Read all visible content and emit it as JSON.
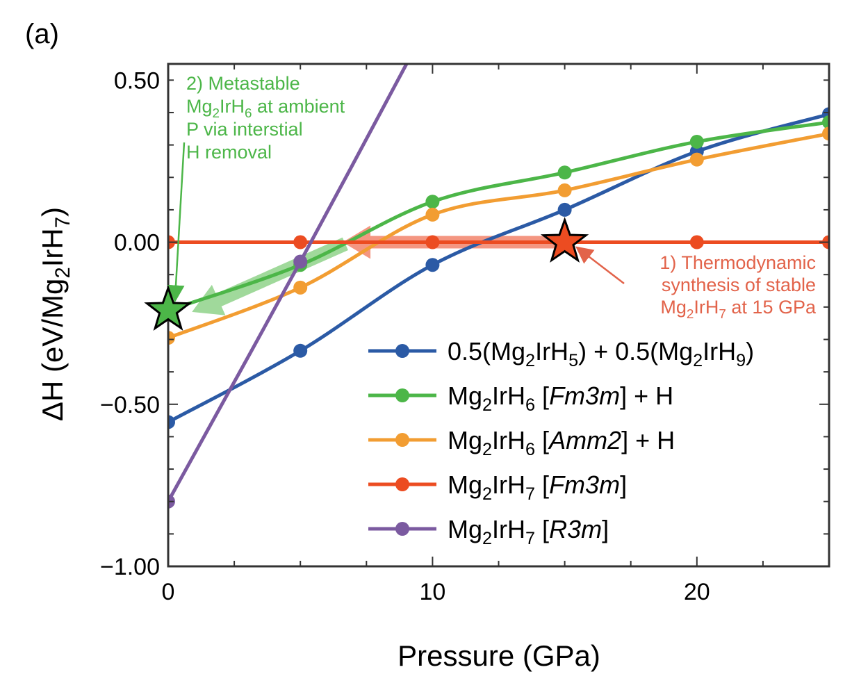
{
  "panel_label": "(a)",
  "colors": {
    "blue": "#2b5aa5",
    "green": "#4cb648",
    "orange": "#f29d32",
    "red": "#ec4c21",
    "purple": "#7b5aa0",
    "note_green": "#4cb648",
    "note_red": "#e2634a",
    "arrow_red": "#f2846b",
    "arrow_green": "#8fd28a"
  },
  "chart_data": {
    "type": "line",
    "xlabel": "Pressure (GPa)",
    "ylabel": "ΔH (eV/Mg2IrH7)",
    "xlim": [
      0,
      25
    ],
    "ylim": [
      -1.0,
      0.55
    ],
    "xticks": [
      0,
      10,
      20
    ],
    "xtick_labels": [
      "0",
      "10",
      "20"
    ],
    "yticks": [
      -1.0,
      -0.5,
      0.0,
      0.5
    ],
    "ytick_labels": [
      "−1.00",
      "−0.50",
      "0.00",
      "0.50"
    ],
    "grid": false,
    "legend_position": "bottom-right",
    "series": [
      {
        "name": "0.5(Mg2IrH5) + 0.5(Mg2IrH9)",
        "legend": {
          "parts": [
            [
              "0.5(Mg",
              ""
            ],
            [
              "2",
              "sub"
            ],
            [
              "IrH",
              ""
            ],
            [
              "5",
              "sub"
            ],
            [
              ") + 0.5(Mg",
              ""
            ],
            [
              "2",
              "sub"
            ],
            [
              "IrH",
              ""
            ],
            [
              "9",
              "sub"
            ],
            [
              ")",
              ""
            ]
          ]
        },
        "color_key": "blue",
        "x": [
          0,
          5,
          10,
          15,
          20,
          25
        ],
        "y": [
          -0.555,
          -0.335,
          -0.07,
          0.1,
          0.28,
          0.395
        ]
      },
      {
        "name": "Mg2IrH6 [Fm3m] + H",
        "legend": {
          "parts": [
            [
              "Mg",
              ""
            ],
            [
              "2",
              "sub"
            ],
            [
              "IrH",
              ""
            ],
            [
              "6",
              "sub"
            ],
            [
              " [",
              ""
            ],
            [
              "Fm3m",
              "ital-bar"
            ],
            [
              "] + H",
              ""
            ]
          ]
        },
        "color_key": "green",
        "x": [
          0,
          5,
          10,
          15,
          20,
          25
        ],
        "y": [
          -0.21,
          -0.07,
          0.125,
          0.215,
          0.31,
          0.37
        ]
      },
      {
        "name": "Mg2IrH6 [Amm2] + H",
        "legend": {
          "parts": [
            [
              "Mg",
              ""
            ],
            [
              "2",
              "sub"
            ],
            [
              "IrH",
              ""
            ],
            [
              "6",
              "sub"
            ],
            [
              " [",
              ""
            ],
            [
              "Amm2",
              "ital"
            ],
            [
              "] + H",
              ""
            ]
          ]
        },
        "color_key": "orange",
        "x": [
          0,
          5,
          10,
          15,
          20,
          25
        ],
        "y": [
          -0.295,
          -0.14,
          0.085,
          0.16,
          0.255,
          0.335
        ]
      },
      {
        "name": "Mg2IrH7 [Fm3m]",
        "legend": {
          "parts": [
            [
              "Mg",
              ""
            ],
            [
              "2",
              "sub"
            ],
            [
              "IrH",
              ""
            ],
            [
              "7",
              "sub"
            ],
            [
              " [",
              ""
            ],
            [
              "Fm3m",
              "ital-bar"
            ],
            [
              "]",
              ""
            ]
          ]
        },
        "color_key": "red",
        "x": [
          0,
          5,
          10,
          15,
          20,
          25
        ],
        "y": [
          0,
          0,
          0,
          0,
          0,
          0
        ]
      },
      {
        "name": "Mg2IrH7 [R3m]",
        "legend": {
          "parts": [
            [
              "Mg",
              ""
            ],
            [
              "2",
              "sub"
            ],
            [
              "IrH",
              ""
            ],
            [
              "7",
              "sub"
            ],
            [
              " [",
              ""
            ],
            [
              "R3m",
              "ital-bar-r"
            ],
            [
              "]",
              ""
            ]
          ]
        },
        "color_key": "purple",
        "x": [
          0,
          5,
          10
        ],
        "y": [
          -0.8,
          -0.06,
          0.7
        ]
      }
    ],
    "stars": [
      {
        "x": 0,
        "y": -0.21,
        "color_key": "green"
      },
      {
        "x": 15,
        "y": 0.0,
        "color_key": "red"
      }
    ],
    "annotations": {
      "note2": [
        "2) Metastable",
        "Mg2IrH6 at ambient",
        "P via interstial",
        "H removal"
      ],
      "note1": [
        "1) Thermodynamic",
        "synthesis of stable",
        "Mg2IrH7 at 15 GPa"
      ]
    }
  }
}
